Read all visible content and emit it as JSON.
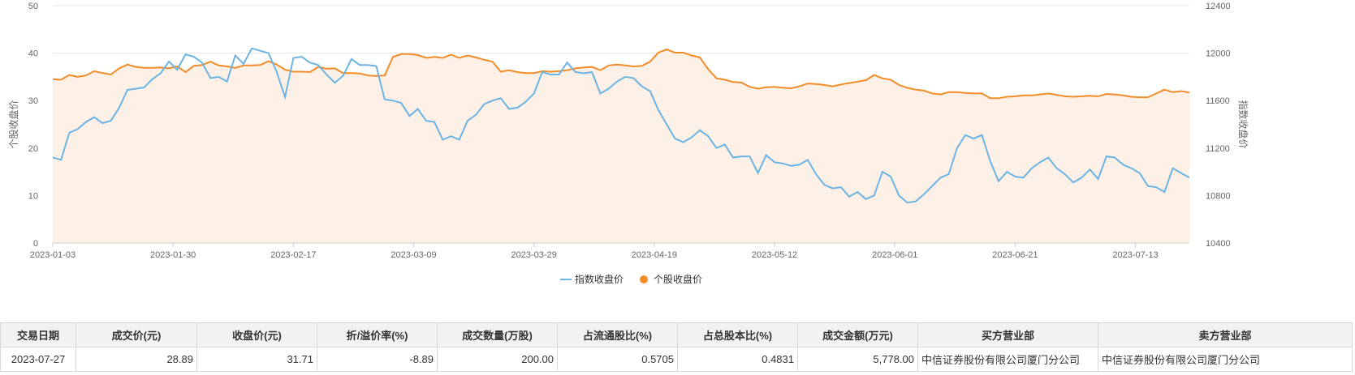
{
  "chart_data": {
    "type": "line",
    "xlabel": "",
    "y_left": {
      "label": "个股收盘价",
      "min": 0,
      "max": 50,
      "ticks": [
        0,
        10,
        20,
        30,
        40,
        50
      ]
    },
    "y_right": {
      "label": "指数收盘价",
      "min": 10400,
      "max": 12400,
      "ticks": [
        10400,
        10800,
        11200,
        11600,
        12000,
        12400
      ]
    },
    "x_tick_labels": [
      "2023-01-03",
      "2023-01-30",
      "2023-02-17",
      "2023-03-09",
      "2023-03-29",
      "2023-04-19",
      "2023-05-12",
      "2023-06-01",
      "2023-06-21",
      "2023-07-13"
    ],
    "legend": {
      "position": "bottom-center",
      "items": [
        "指数收盘价",
        "个股收盘价"
      ]
    },
    "colors": {
      "index": "#6cb4e4",
      "stock": "#f28c28",
      "area": "#fdf0e6"
    },
    "series": [
      {
        "name": "指数收盘价",
        "axis": "right",
        "values": [
          11120,
          11100,
          11330,
          11360,
          11420,
          11460,
          11410,
          11430,
          11540,
          11690,
          11700,
          11710,
          11780,
          11830,
          11930,
          11860,
          11990,
          11970,
          11920,
          11790,
          11800,
          11760,
          11980,
          11910,
          12040,
          12020,
          12000,
          11840,
          11630,
          11960,
          11970,
          11920,
          11900,
          11820,
          11750,
          11810,
          11950,
          11900,
          11900,
          11890,
          11610,
          11600,
          11580,
          11470,
          11530,
          11430,
          11420,
          11270,
          11300,
          11270,
          11430,
          11480,
          11570,
          11600,
          11620,
          11530,
          11540,
          11590,
          11660,
          11840,
          11820,
          11820,
          11920,
          11840,
          11830,
          11840,
          11660,
          11700,
          11760,
          11800,
          11790,
          11720,
          11680,
          11520,
          11400,
          11280,
          11250,
          11290,
          11350,
          11300,
          11200,
          11230,
          11120,
          11130,
          11130,
          10990,
          11140,
          11080,
          11070,
          11050,
          11060,
          11100,
          10980,
          10890,
          10860,
          10870,
          10790,
          10830,
          10770,
          10800,
          11000,
          10960,
          10800,
          10740,
          10750,
          10810,
          10880,
          10950,
          10980,
          11200,
          11310,
          11280,
          11310,
          11090,
          10920,
          11000,
          10960,
          10950,
          11030,
          11080,
          11120,
          11030,
          10980,
          10910,
          10950,
          11020,
          10940,
          11130,
          11120,
          11060,
          11030,
          10990,
          10880,
          10870,
          10830,
          11030,
          10990,
          10950
        ]
      },
      {
        "name": "个股收盘价",
        "axis": "left",
        "values": [
          34.5,
          34.4,
          35.4,
          35.0,
          35.3,
          36.2,
          35.8,
          35.5,
          36.8,
          37.6,
          37.1,
          36.9,
          36.9,
          37.0,
          36.8,
          37.2,
          36.0,
          37.3,
          37.5,
          38.2,
          37.4,
          37.2,
          36.9,
          37.4,
          37.4,
          37.5,
          38.3,
          37.6,
          36.5,
          36.1,
          36.1,
          36.0,
          37.1,
          36.7,
          36.8,
          35.8,
          35.8,
          35.7,
          35.3,
          35.2,
          35.3,
          39.2,
          39.8,
          39.8,
          39.6,
          39.0,
          39.2,
          39.0,
          39.7,
          39.0,
          39.5,
          39.1,
          38.6,
          38.2,
          36.1,
          36.4,
          36.0,
          35.8,
          35.8,
          36.2,
          36.1,
          36.2,
          36.4,
          36.8,
          37.0,
          37.1,
          36.4,
          37.4,
          37.6,
          37.4,
          37.2,
          37.3,
          38.2,
          40.1,
          40.8,
          40.1,
          40.1,
          39.5,
          39.1,
          36.6,
          34.7,
          34.4,
          33.9,
          33.8,
          32.9,
          32.5,
          32.8,
          32.9,
          32.7,
          32.6,
          33.0,
          33.6,
          33.5,
          33.3,
          33.0,
          33.4,
          33.7,
          34.0,
          34.3,
          35.4,
          34.7,
          34.4,
          33.3,
          32.7,
          32.3,
          32.1,
          31.5,
          31.3,
          31.8,
          31.8,
          31.6,
          31.5,
          31.5,
          30.5,
          30.5,
          30.8,
          30.9,
          31.1,
          31.1,
          31.3,
          31.5,
          31.2,
          30.9,
          30.8,
          30.9,
          31.0,
          30.9,
          31.4,
          31.3,
          31.1,
          30.8,
          30.7,
          30.7,
          31.5,
          32.3,
          31.8,
          32.0,
          31.7
        ]
      }
    ]
  },
  "table": {
    "headers": [
      "交易日期",
      "成交价(元)",
      "收盘价(元)",
      "折/溢价率(%)",
      "成交数量(万股)",
      "占流通股比(%)",
      "占总股本比(%)",
      "成交金额(万元)",
      "买方营业部",
      "卖方营业部"
    ],
    "rows": [
      [
        "2023-07-27",
        "28.89",
        "31.71",
        "-8.89",
        "200.00",
        "0.5705",
        "0.4831",
        "5,778.00",
        "中信证券股份有限公司厦门分公司",
        "中信证券股份有限公司厦门分公司"
      ]
    ]
  }
}
